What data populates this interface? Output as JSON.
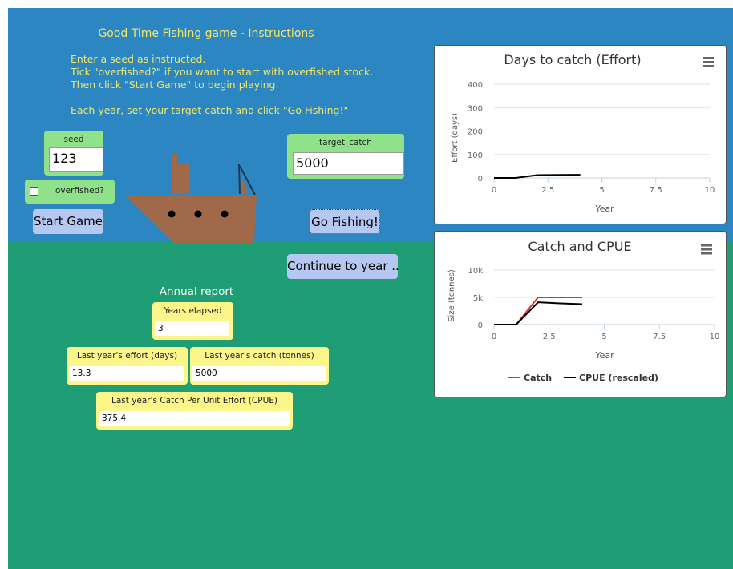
{
  "instructions": {
    "title": "Good Time Fishing game - Instructions",
    "lines": [
      "Enter a seed as instructed.",
      "Tick \"overfished?\" if you want to start with overfished stock.",
      "Then click \"Start Game\" to begin playing.",
      "",
      "Each year, set your target catch and click \"Go Fishing!\""
    ]
  },
  "controls": {
    "seed_label": "seed",
    "seed_value": "123",
    "overfished_label": "overfished?",
    "overfished_checked": false,
    "target_label": "target_catch",
    "target_value": "5000",
    "start_button": "Start Game",
    "fish_button": "Go Fishing!",
    "continue_button": "Continue to year ..."
  },
  "report": {
    "title": "Annual report",
    "years_label": "Years elapsed",
    "years_value": "3",
    "effort_label": "Last year's effort (days)",
    "effort_value": "13.3",
    "catch_label": "Last year's catch (tonnes)",
    "catch_value": "5000",
    "cpue_label": "Last year's Catch Per Unit Effort (CPUE)",
    "cpue_value": "375.4"
  },
  "colors": {
    "sky": "#2b86c2",
    "sea": "#1f9d74",
    "boat": "#a0694a",
    "catch_line": "#e03030",
    "cpue_line": "#000000"
  },
  "chart_data": [
    {
      "type": "line",
      "title": "Days to catch (Effort)",
      "xlabel": "Year",
      "ylabel": "Effort (days)",
      "xlim": [
        0,
        10
      ],
      "ylim": [
        0,
        400
      ],
      "xticks": [
        "0",
        "2.5",
        "5",
        "7.5",
        "10"
      ],
      "yticks": [
        "0",
        "100",
        "200",
        "300",
        "400"
      ],
      "series": [
        {
          "x": [
            0,
            1,
            2,
            3,
            4
          ],
          "values": [
            0,
            0,
            12,
            13,
            13.3
          ],
          "color": "#000000"
        }
      ],
      "menu_icon": "hamburger-menu-icon"
    },
    {
      "type": "line",
      "title": "Catch and CPUE",
      "xlabel": "Year",
      "ylabel": "Size (tonnes)",
      "xlim": [
        0,
        10
      ],
      "ylim": [
        0,
        10000
      ],
      "xticks": [
        "0",
        "2.5",
        "5",
        "7.5",
        "10"
      ],
      "yticks": [
        "0",
        "5k",
        "10k"
      ],
      "legend": "bottom",
      "series": [
        {
          "name": "Catch",
          "x": [
            0,
            1,
            2,
            3,
            4
          ],
          "values": [
            0,
            0,
            5000,
            5000,
            5000
          ],
          "color": "#e03030"
        },
        {
          "name": "CPUE (rescaled)",
          "x": [
            0,
            1,
            2,
            3,
            4
          ],
          "values": [
            0,
            0,
            4100,
            3900,
            3750
          ],
          "color": "#000000"
        }
      ],
      "menu_icon": "hamburger-menu-icon"
    }
  ]
}
